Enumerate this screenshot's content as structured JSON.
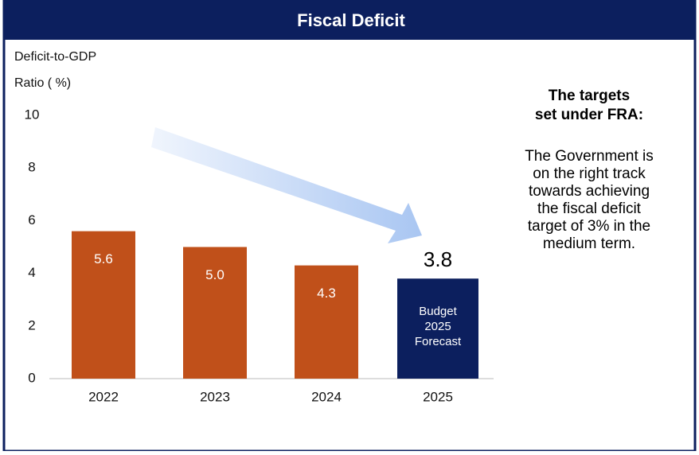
{
  "chart_data": {
    "type": "bar",
    "title": "Fiscal Deficit",
    "y_label_lines": [
      "Deficit-to-GDP",
      "Ratio ( %)"
    ],
    "categories": [
      "2022",
      "2023",
      "2024",
      "2025"
    ],
    "values": [
      5.6,
      5.0,
      4.3,
      3.8
    ],
    "value_labels": [
      "5.6",
      "5.0",
      "4.3",
      "3.8"
    ],
    "colors": [
      "#c0501a",
      "#c0501a",
      "#c0501a",
      "#0c1f5e"
    ],
    "ylim": [
      0,
      10
    ],
    "yticks": [
      0,
      2,
      4,
      6,
      8,
      10
    ],
    "annotation_lines": [
      "Budget",
      "2025",
      "Forecast"
    ],
    "side_heading_lines": [
      "The targets",
      "set under FRA:"
    ],
    "side_text_lines": [
      "The Government is",
      "on the right track",
      "towards achieving",
      "the fiscal deficit",
      "target of 3% in the",
      "medium term."
    ]
  }
}
